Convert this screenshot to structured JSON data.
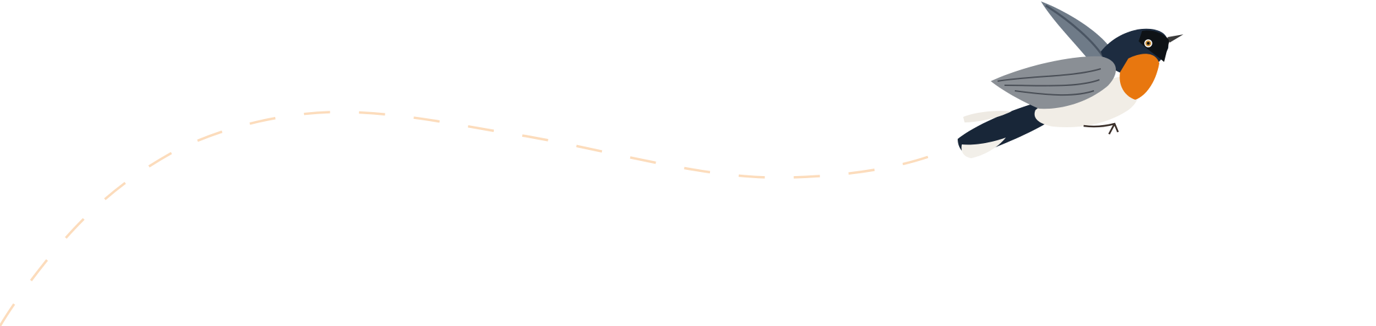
{
  "illustration": {
    "subject": "flying-bird",
    "path_style": "dashed",
    "colors": {
      "background": "#ffffff",
      "flight_path": "#fcdcbc",
      "bird_throat": "#e8770f",
      "bird_head": "#1d2c40",
      "bird_wing": "#8a8f95",
      "bird_belly": "#f1ede6"
    }
  }
}
